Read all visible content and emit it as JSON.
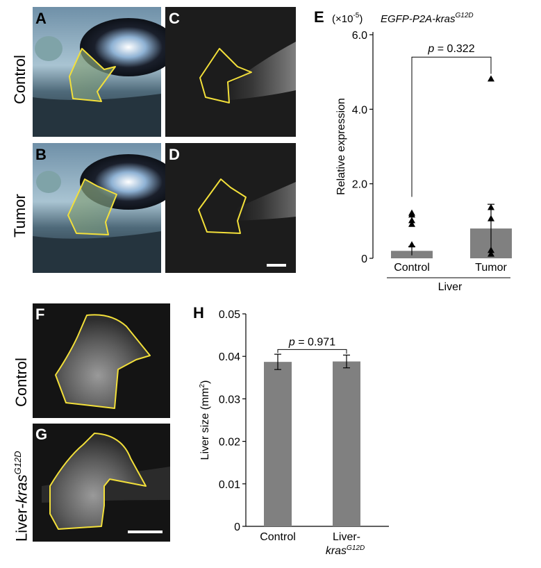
{
  "panel_letters": {
    "a": "A",
    "b": "B",
    "c": "C",
    "d": "D",
    "e": "E",
    "f": "F",
    "g": "G",
    "h": "H"
  },
  "row_labels": {
    "control_top": "Control",
    "tumor": "Tumor",
    "control_bottom": "Control",
    "liver_kras_prefix": "Liver-",
    "liver_kras_gene": "kras",
    "liver_kras_sup": "G12D"
  },
  "colors": {
    "outline": "#f3e03a",
    "bar": "#808080",
    "fluor_bg": "#1c1c1c",
    "bright_bg": "#394a55"
  },
  "chart_data": [
    {
      "type": "bar",
      "panel": "E",
      "title": "EGFP-P2A-kras",
      "title_sup": "G12D",
      "multiplier": "(×10",
      "multiplier_sup": "-5",
      "multiplier_end": ")",
      "ylabel": "Relative expression",
      "xlabel": "Liver",
      "categories": [
        "Control",
        "Tumor"
      ],
      "values": [
        0.2,
        0.8
      ],
      "error": [
        0.12,
        0.65
      ],
      "points": [
        [
          0.35,
          0.9,
          1.0,
          1.2,
          1.15
        ],
        [
          0.1,
          0.2,
          1.05,
          1.35,
          4.8
        ]
      ],
      "ylim": [
        0,
        6
      ],
      "yticks": [
        "0",
        "2.0",
        "4.0",
        "6.0"
      ],
      "ytick_values": [
        0,
        2,
        4,
        6
      ],
      "p_label": "p",
      "p_value": "= 0.322"
    },
    {
      "type": "bar",
      "panel": "H",
      "ylabel": "Liver size (mm",
      "ylabel_sup": "2",
      "ylabel_end": ")",
      "categories": [
        "Control",
        "Liver-"
      ],
      "category2_line2": "kras",
      "category2_sup": "G12D",
      "values": [
        0.0387,
        0.0388
      ],
      "error": [
        0.0018,
        0.0015
      ],
      "ylim": [
        0,
        0.05
      ],
      "yticks": [
        "0",
        "0.01",
        "0.02",
        "0.03",
        "0.04",
        "0.05"
      ],
      "ytick_values": [
        0,
        0.01,
        0.02,
        0.03,
        0.04,
        0.05
      ],
      "p_label": "p",
      "p_value": "= 0.971"
    }
  ]
}
